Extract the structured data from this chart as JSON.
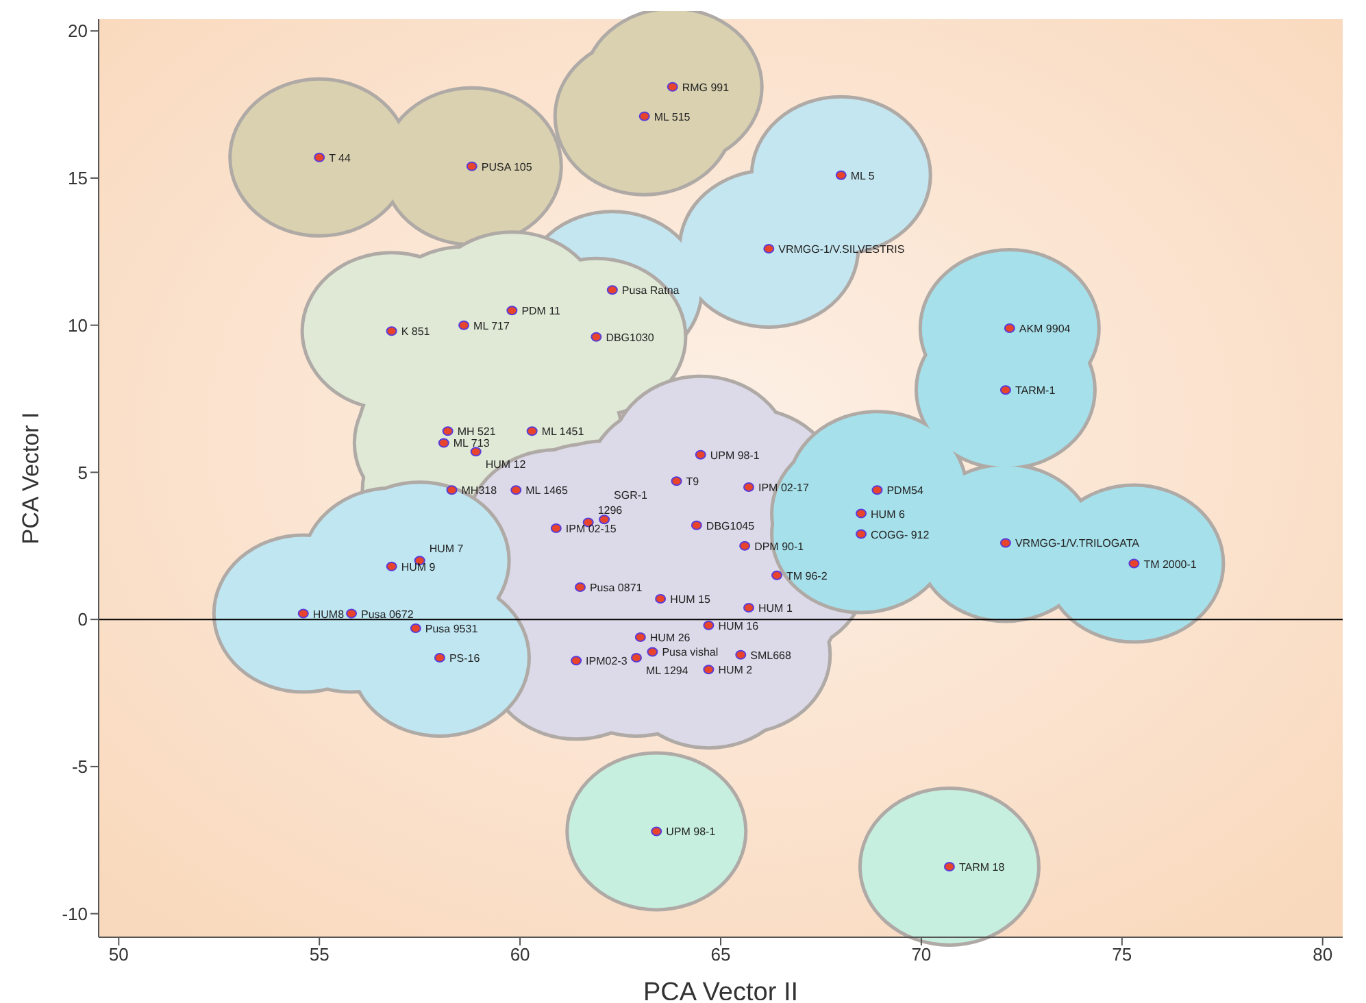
{
  "chart_data": {
    "type": "scatter",
    "xlabel": "PCA Vector II",
    "ylabel": "PCA Vector I",
    "xlim": [
      49.5,
      80.5
    ],
    "ylim": [
      -10.8,
      20.4
    ],
    "xticks": [
      50,
      55,
      60,
      65,
      70,
      75,
      80
    ],
    "yticks": [
      -10,
      -5,
      0,
      5,
      10,
      15,
      20
    ],
    "grid": false,
    "marker": "circle",
    "ref_lines": [
      {
        "axis": "y",
        "value": 0,
        "color": "#000000"
      }
    ],
    "series": [
      {
        "color": "#e8442c",
        "x": [
          55.0,
          58.8,
          63.8,
          63.1
        ],
        "values": [
          15.7,
          15.4,
          18.1,
          17.1
        ]
      },
      {
        "color": "#e8442c",
        "x": [
          68.0,
          66.2,
          62.3
        ],
        "values": [
          15.1,
          12.6,
          11.2
        ]
      },
      {
        "color": "#e8442c",
        "x": [
          59.8,
          56.8,
          58.6,
          61.9,
          58.2,
          58.1,
          58.9,
          60.3,
          58.3,
          59.9
        ],
        "values": [
          10.5,
          9.8,
          10.0,
          9.6,
          6.4,
          6.0,
          5.7,
          6.4,
          4.4,
          4.4
        ]
      },
      {
        "color": "#e8442c",
        "x": [
          64.5,
          63.9,
          65.7,
          60.9,
          61.7,
          62.1,
          64.4,
          65.6,
          66.4,
          61.5,
          63.5,
          65.7,
          64.7,
          63.0,
          63.3,
          62.9,
          61.4,
          65.5,
          64.7
        ],
        "values": [
          5.6,
          4.7,
          4.5,
          3.1,
          3.3,
          3.4,
          3.2,
          2.5,
          1.5,
          1.1,
          0.7,
          0.4,
          -0.2,
          -0.6,
          -1.1,
          -1.3,
          -1.4,
          -1.2,
          -1.7
        ]
      },
      {
        "color": "#e8442c",
        "x": [
          56.8,
          57.5,
          54.6,
          55.8,
          57.4,
          58.0
        ],
        "values": [
          1.8,
          2.0,
          0.2,
          0.2,
          -0.3,
          -1.3
        ]
      },
      {
        "color": "#e8442c",
        "x": [
          72.2,
          72.1,
          68.9,
          68.5,
          68.5,
          72.1,
          75.3
        ],
        "values": [
          9.9,
          7.8,
          4.4,
          3.6,
          2.9,
          2.6,
          1.9
        ]
      },
      {
        "color": "#e8442c",
        "x": [
          63.4,
          70.7
        ],
        "values": [
          -7.2,
          -8.4
        ]
      }
    ],
    "annotations": [
      {
        "text": "T 44",
        "x": 55.0,
        "y": 15.7
      },
      {
        "text": "PUSA 105",
        "x": 58.8,
        "y": 15.4
      },
      {
        "text": "RMG 991",
        "x": 63.8,
        "y": 18.1
      },
      {
        "text": "ML 515",
        "x": 63.1,
        "y": 17.1
      },
      {
        "text": "ML 5",
        "x": 68.0,
        "y": 15.1
      },
      {
        "text": "VRMGG-1/V.SILVESTRIS",
        "x": 66.2,
        "y": 12.6
      },
      {
        "text": "Pusa Ratna",
        "x": 62.3,
        "y": 11.2
      },
      {
        "text": "PDM 11",
        "x": 59.8,
        "y": 10.5
      },
      {
        "text": "K 851",
        "x": 56.8,
        "y": 9.8
      },
      {
        "text": "ML 717",
        "x": 58.6,
        "y": 10.0
      },
      {
        "text": "DBG1030",
        "x": 61.9,
        "y": 9.6
      },
      {
        "text": "MH 521",
        "x": 58.2,
        "y": 6.4
      },
      {
        "text": "ML 713",
        "x": 58.1,
        "y": 6.0
      },
      {
        "text": "HUM 12",
        "x": 58.9,
        "y": 5.7
      },
      {
        "text": "ML 1451",
        "x": 60.3,
        "y": 6.4
      },
      {
        "text": "MH318",
        "x": 58.3,
        "y": 4.4
      },
      {
        "text": "ML 1465",
        "x": 59.9,
        "y": 4.4
      },
      {
        "text": "UPM 98-1",
        "x": 64.5,
        "y": 5.6
      },
      {
        "text": "T9",
        "x": 63.9,
        "y": 4.7
      },
      {
        "text": "IPM 02-17",
        "x": 65.7,
        "y": 4.5
      },
      {
        "text": "IPM 02-15",
        "x": 60.9,
        "y": 3.1
      },
      {
        "text": "1296",
        "x": 61.7,
        "y": 3.3
      },
      {
        "text": "SGR-1",
        "x": 62.1,
        "y": 3.4
      },
      {
        "text": "DBG1045",
        "x": 64.4,
        "y": 3.2
      },
      {
        "text": "DPM 90-1",
        "x": 65.6,
        "y": 2.5
      },
      {
        "text": "TM 96-2",
        "x": 66.4,
        "y": 1.5
      },
      {
        "text": "Pusa 0871",
        "x": 61.5,
        "y": 1.1
      },
      {
        "text": "HUM 15",
        "x": 63.5,
        "y": 0.7
      },
      {
        "text": "HUM 1",
        "x": 65.7,
        "y": 0.4
      },
      {
        "text": "HUM 16",
        "x": 64.7,
        "y": -0.2
      },
      {
        "text": "HUM 26",
        "x": 63.0,
        "y": -0.6
      },
      {
        "text": "Pusa vishal",
        "x": 63.3,
        "y": -1.1
      },
      {
        "text": "ML 1294",
        "x": 62.9,
        "y": -1.3
      },
      {
        "text": "IPM02-3",
        "x": 61.4,
        "y": -1.4
      },
      {
        "text": "SML668",
        "x": 65.5,
        "y": -1.2
      },
      {
        "text": "HUM 2",
        "x": 64.7,
        "y": -1.7
      },
      {
        "text": "HUM 9",
        "x": 56.8,
        "y": 1.8
      },
      {
        "text": "HUM 7",
        "x": 57.5,
        "y": 2.0
      },
      {
        "text": "HUM8",
        "x": 54.6,
        "y": 0.2
      },
      {
        "text": "Pusa 0672",
        "x": 55.8,
        "y": 0.2
      },
      {
        "text": "Pusa 9531",
        "x": 57.4,
        "y": -0.3
      },
      {
        "text": "PS-16",
        "x": 58.0,
        "y": -1.3
      },
      {
        "text": "AKM 9904",
        "x": 72.2,
        "y": 9.9
      },
      {
        "text": "TARM-1",
        "x": 72.1,
        "y": 7.8
      },
      {
        "text": "PDM54",
        "x": 68.9,
        "y": 4.4
      },
      {
        "text": "HUM 6",
        "x": 68.5,
        "y": 3.6
      },
      {
        "text": "COGG- 912",
        "x": 68.5,
        "y": 2.9
      },
      {
        "text": "VRMGG-1/V.TRILOGATA",
        "x": 72.1,
        "y": 2.6
      },
      {
        "text": "TM 2000-1",
        "x": 75.3,
        "y": 1.9
      },
      {
        "text": "UPM 98-1",
        "x": 63.4,
        "y": -7.2
      },
      {
        "text": "TARM 18",
        "x": 70.7,
        "y": -8.4
      }
    ]
  }
}
